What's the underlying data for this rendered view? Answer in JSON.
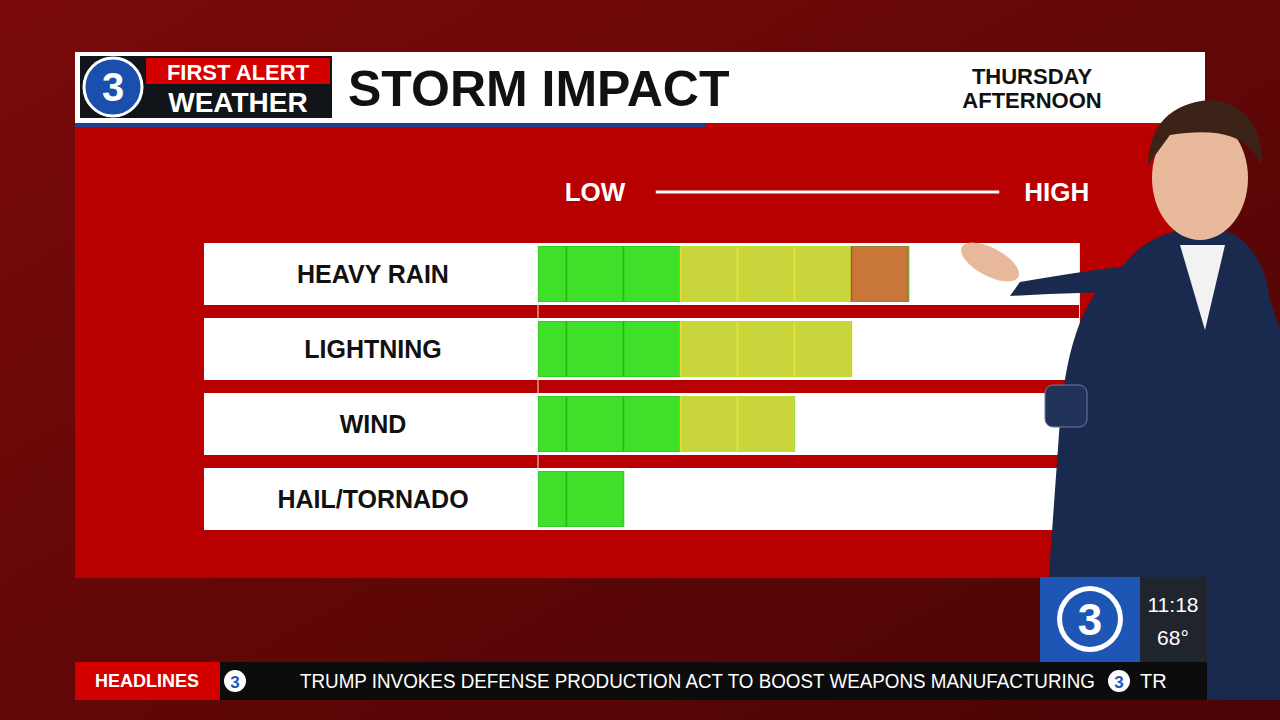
{
  "chart_data": {
    "type": "bar",
    "orientation": "horizontal",
    "title": "STORM IMPACT",
    "subtitle": "THURSDAY AFTERNOON",
    "categories": [
      "HEAVY RAIN",
      "LIGHTNING",
      "WIND",
      "HAIL/TORNADO"
    ],
    "values": [
      6.5,
      5.5,
      4.5,
      1.5
    ],
    "xlim": [
      0,
      9.5
    ],
    "xticks": [
      {
        "value": 1,
        "label": "LOW"
      },
      {
        "value": 9.1,
        "label": "HIGH"
      }
    ],
    "grid": false,
    "tick_labels": "x"
  },
  "broadcast": {
    "logo_number": "3",
    "logo_line1": "FIRST ALERT",
    "logo_line2": "WEATHER",
    "ticker_label": "HEADLINES",
    "ticker_text": "TRUMP INVOKES DEFENSE PRODUCTION ACT TO BOOST WEAPONS MANUFACTURING",
    "ticker_next": "TR",
    "time": "11:18",
    "temperature": "68°"
  }
}
